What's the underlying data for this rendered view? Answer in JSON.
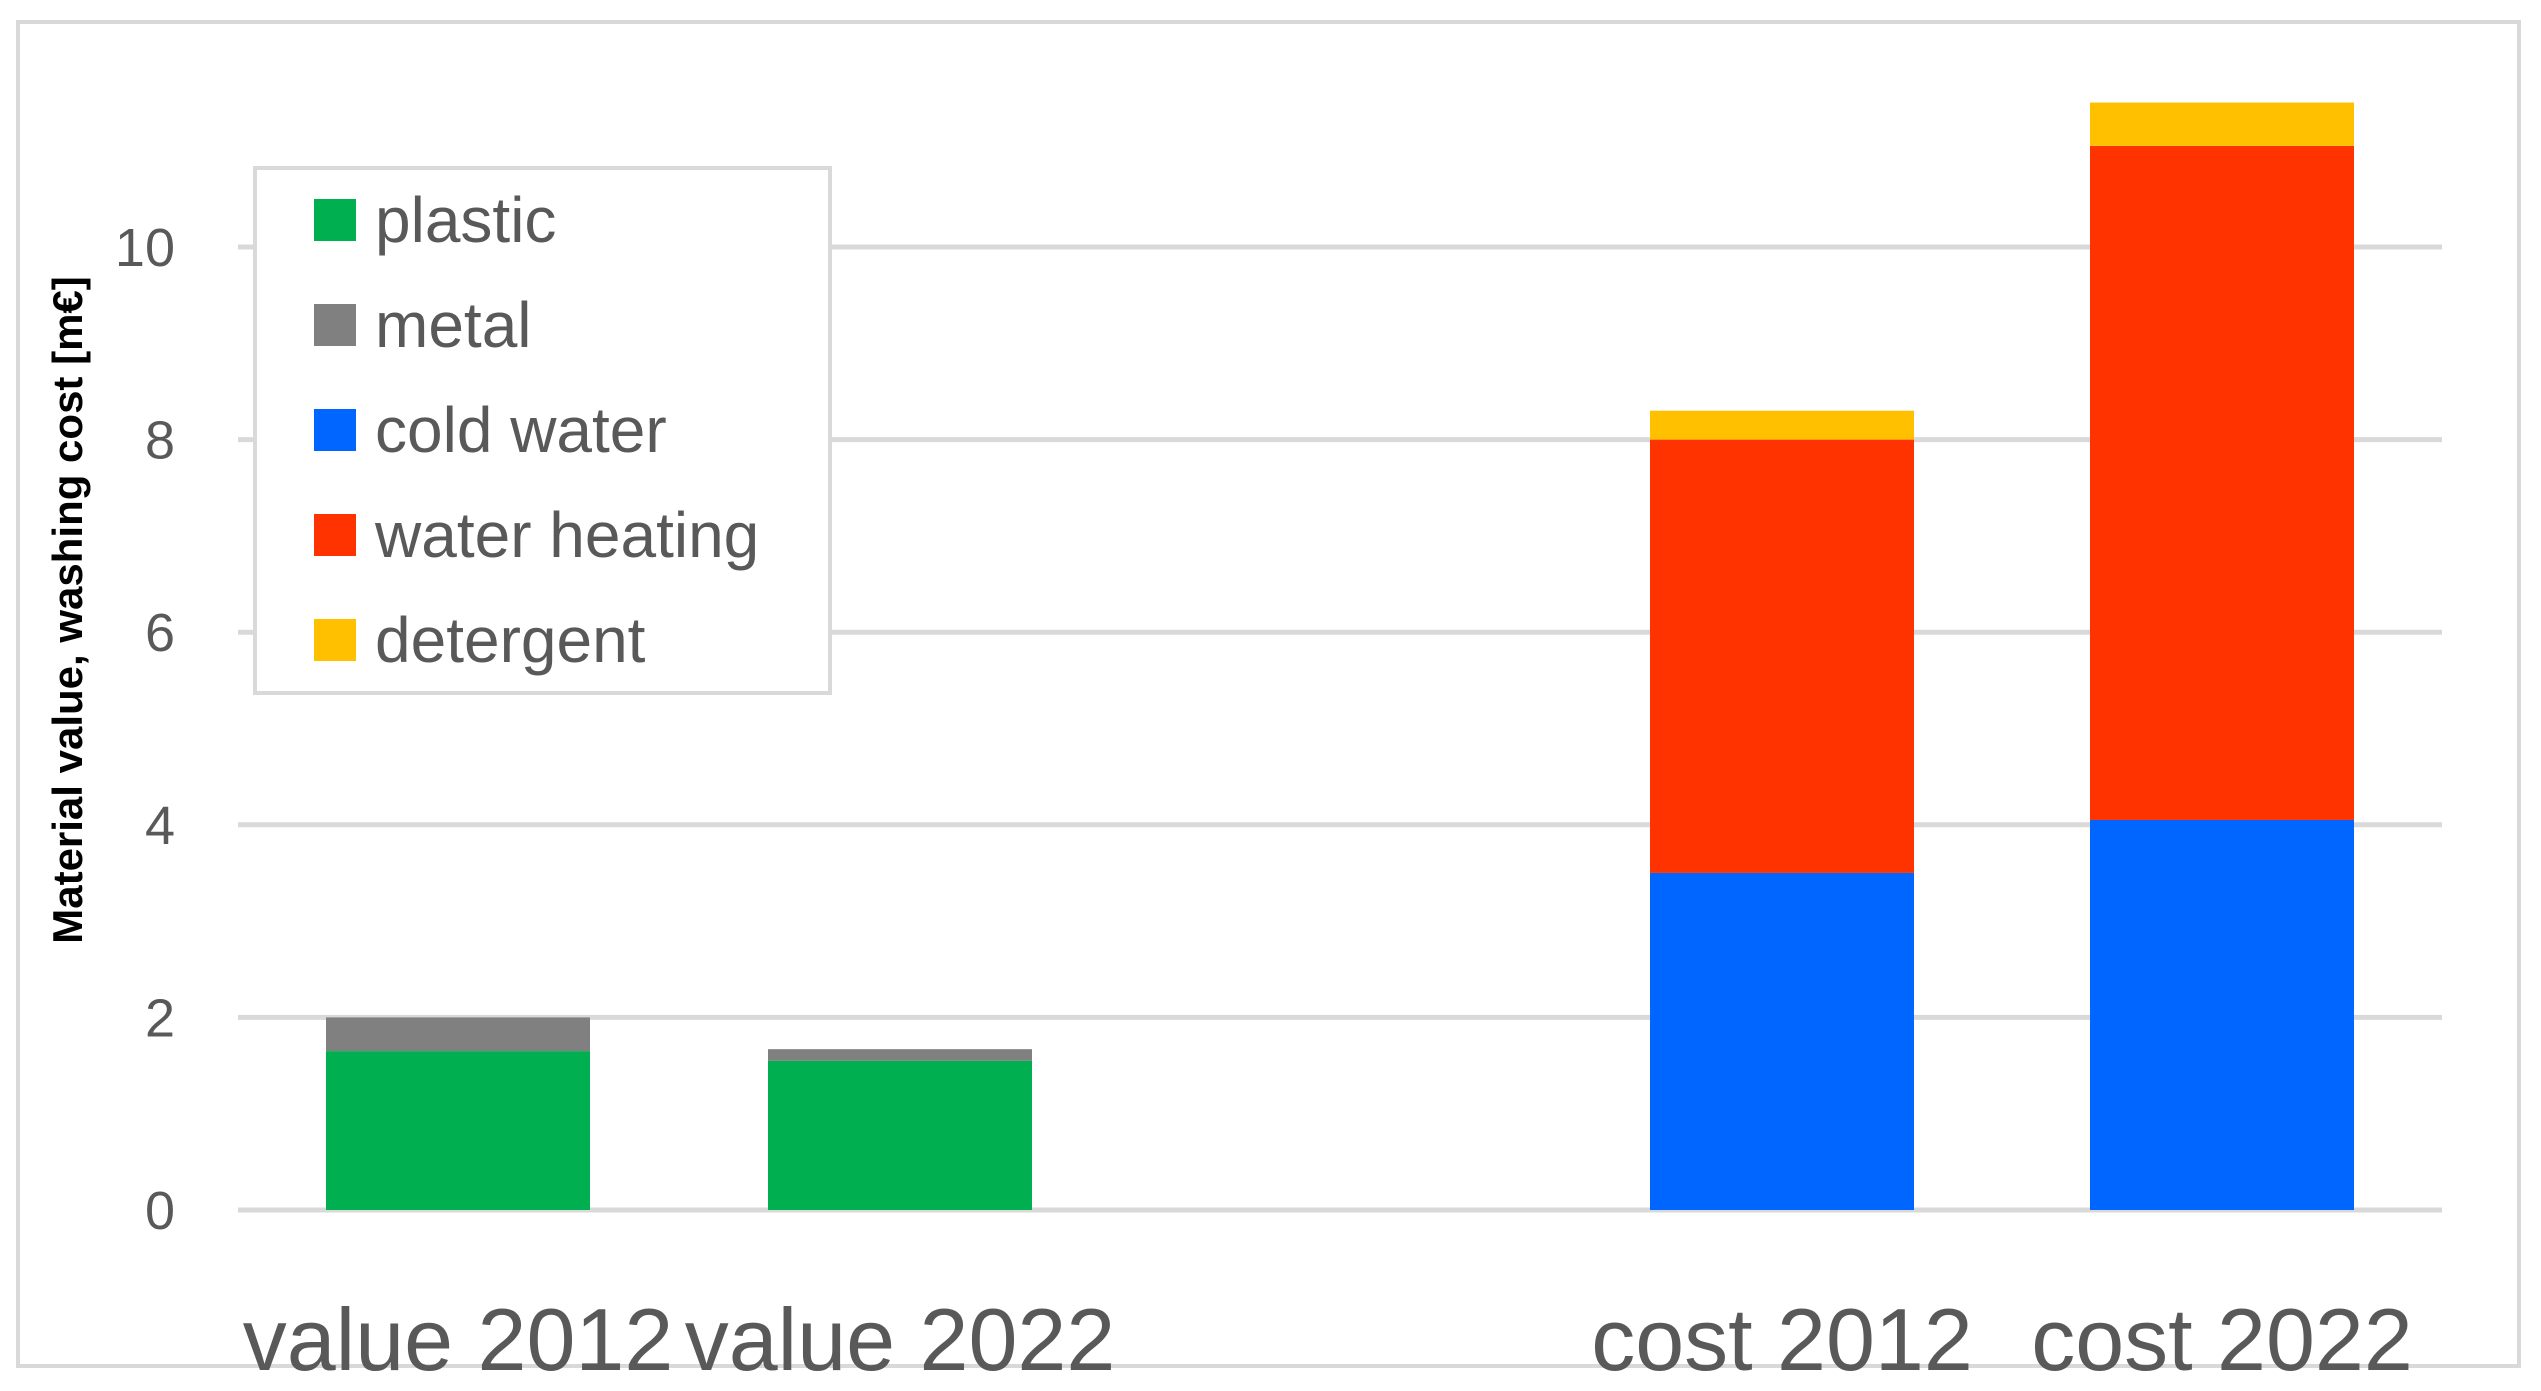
{
  "chart_data": {
    "type": "bar",
    "stacked": true,
    "categories": [
      "value 2012",
      "value 2022",
      "",
      "cost 2012",
      "cost 2022"
    ],
    "series": [
      {
        "name": "plastic",
        "color": "#00b050",
        "values": [
          1.65,
          1.55,
          0,
          0,
          0
        ]
      },
      {
        "name": "metal",
        "color": "#808080",
        "values": [
          0.35,
          0.12,
          0,
          0,
          0
        ]
      },
      {
        "name": "cold water",
        "color": "#0066ff",
        "values": [
          0,
          0,
          0,
          3.5,
          4.05
        ]
      },
      {
        "name": "water heating",
        "color": "#ff3300",
        "values": [
          0,
          0,
          0,
          4.5,
          7.0
        ]
      },
      {
        "name": "detergent",
        "color": "#ffc000",
        "values": [
          0,
          0,
          0,
          0.3,
          0.45
        ]
      }
    ],
    "title": "",
    "xlabel": "",
    "ylabel": "Material value, washing cost [m€]",
    "ylim": [
      0,
      11.5
    ],
    "yticks": [
      0,
      2,
      4,
      6,
      8,
      10
    ],
    "grid": true,
    "legend": "top-left"
  }
}
